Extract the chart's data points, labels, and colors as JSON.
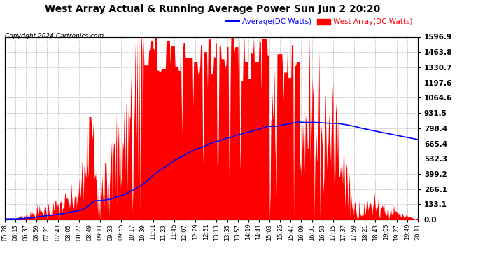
{
  "title": "West Array Actual & Running Average Power Sun Jun 2 20:20",
  "copyright": "Copyright 2024 Cartronics.com",
  "legend_avg": "Average(DC Watts)",
  "legend_west": "West Array(DC Watts)",
  "bg_color": "#ffffff",
  "plot_bg_color": "#ffffff",
  "grid_color": "#aaaaaa",
  "bar_color": "#ff0000",
  "avg_color": "#0000ff",
  "yticks": [
    0.0,
    133.1,
    266.1,
    399.2,
    532.3,
    665.4,
    798.4,
    931.5,
    1064.6,
    1197.6,
    1330.7,
    1463.8,
    1596.9
  ],
  "ymax": 1596.9,
  "x_labels": [
    "05:28",
    "06:15",
    "06:37",
    "06:59",
    "07:21",
    "07:43",
    "08:05",
    "08:27",
    "08:49",
    "09:11",
    "09:33",
    "09:55",
    "10:17",
    "10:39",
    "11:01",
    "11:23",
    "11:45",
    "12:07",
    "12:29",
    "12:51",
    "13:13",
    "13:35",
    "13:57",
    "14:19",
    "14:41",
    "15:03",
    "15:25",
    "15:47",
    "16:09",
    "16:31",
    "16:53",
    "17:15",
    "17:37",
    "17:59",
    "18:21",
    "18:43",
    "19:05",
    "19:27",
    "19:49",
    "20:11"
  ]
}
